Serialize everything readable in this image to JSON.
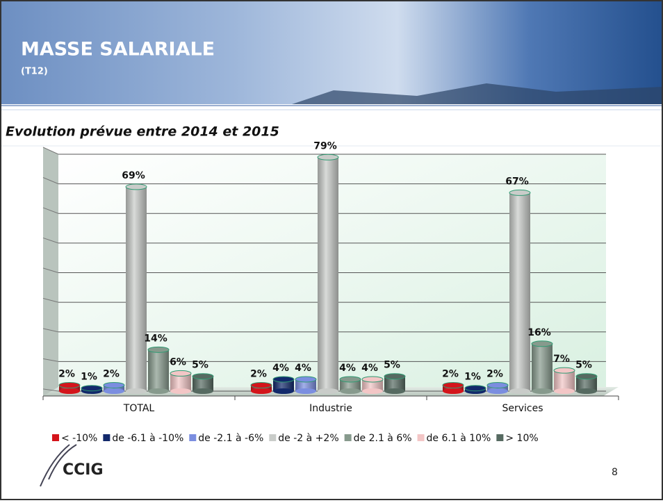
{
  "slide": {
    "title": "MASSE SALARIALE",
    "code": "(T12)",
    "page": "8",
    "logo": "CCIG"
  },
  "chart_data": {
    "type": "bar",
    "title": "Evolution prévue entre 2014 et 2015",
    "categories": [
      "TOTAL",
      "Industrie",
      "Services"
    ],
    "series": [
      {
        "name": "< -10%",
        "color": "#d4141b",
        "values": [
          2,
          2,
          2
        ],
        "value_labels": [
          "2%",
          "2%",
          "2%"
        ]
      },
      {
        "name": "de -6.1 à -10%",
        "color": "#12296b",
        "values": [
          1,
          4,
          1
        ],
        "value_labels": [
          "1%",
          "4%",
          "1%"
        ]
      },
      {
        "name": "de -2.1 à -6%",
        "color": "#7b8ee0",
        "values": [
          2,
          4,
          2
        ],
        "value_labels": [
          "2%",
          "4%",
          "2%"
        ]
      },
      {
        "name": "de -2 à +2%",
        "color": "#c9ccc9",
        "values": [
          69,
          79,
          67
        ],
        "value_labels": [
          "69%",
          "79%",
          "67%"
        ]
      },
      {
        "name": "de 2.1 à 6%",
        "color": "#879a8d",
        "values": [
          14,
          4,
          16
        ],
        "value_labels": [
          "14%",
          "4%",
          "16%"
        ]
      },
      {
        "name": "de 6.1 à 10%",
        "color": "#f3c6c6",
        "values": [
          6,
          4,
          7
        ],
        "value_labels": [
          "6%",
          "4%",
          "7%"
        ]
      },
      {
        "name": "> 10%",
        "color": "#566a61",
        "values": [
          5,
          5,
          5
        ],
        "value_labels": [
          "5%",
          "5%",
          "5%"
        ]
      }
    ],
    "ylim": [
      0,
      80
    ],
    "yticks": [
      0,
      10,
      20,
      30,
      40,
      50,
      60,
      70,
      80
    ],
    "grid": true,
    "legend": "bottom"
  }
}
